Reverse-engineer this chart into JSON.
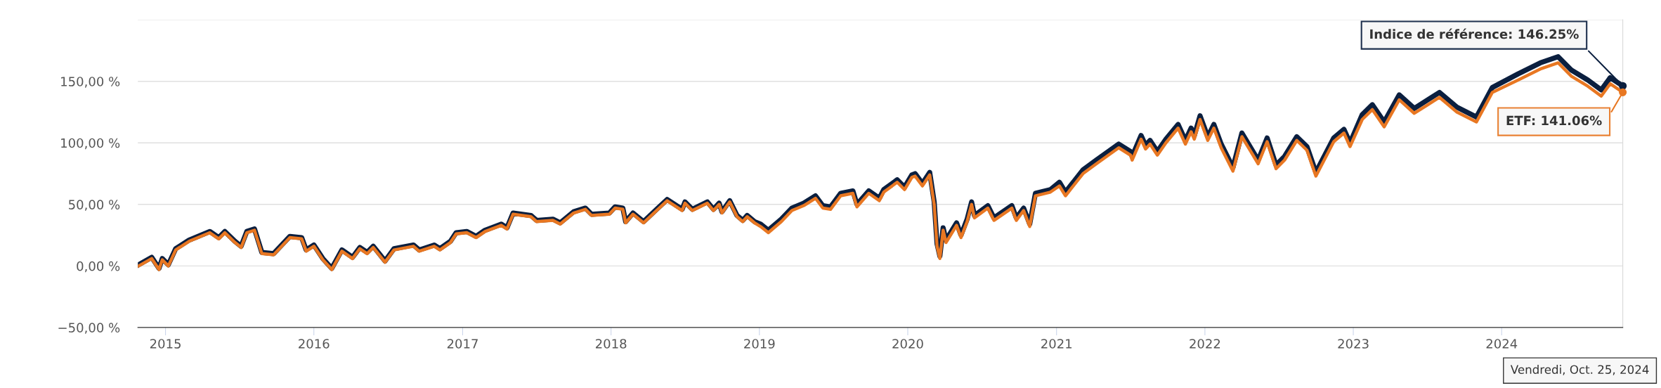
{
  "chart_data": {
    "type": "line",
    "x": [
      "2014-10-27",
      "2014-11-28",
      "2014-12-16",
      "2014-12-24",
      "2015-01-08",
      "2015-01-26",
      "2015-02-28",
      "2015-04-20",
      "2015-05-12",
      "2015-05-27",
      "2015-06-21",
      "2015-07-06",
      "2015-07-20",
      "2015-08-08",
      "2015-08-26",
      "2015-09-24",
      "2015-11-03",
      "2015-12-02",
      "2015-12-13",
      "2016-01-01",
      "2016-01-23",
      "2016-02-14",
      "2016-03-10",
      "2016-04-05",
      "2016-04-23",
      "2016-05-11",
      "2016-05-26",
      "2016-06-24",
      "2016-07-16",
      "2016-09-02",
      "2016-09-16",
      "2016-10-23",
      "2016-11-06",
      "2016-12-02",
      "2016-12-16",
      "2017-01-11",
      "2017-02-03",
      "2017-02-25",
      "2017-04-06",
      "2017-04-20",
      "2017-05-05",
      "2017-06-18",
      "2017-07-02",
      "2017-08-11",
      "2017-08-29",
      "2017-10-01",
      "2017-10-30",
      "2017-11-14",
      "2017-12-28",
      "2018-01-11",
      "2018-01-30",
      "2018-02-06",
      "2018-02-24",
      "2018-03-22",
      "2018-04-23",
      "2018-05-19",
      "2018-06-25",
      "2018-07-02",
      "2018-07-20",
      "2018-08-26",
      "2018-09-10",
      "2018-09-24",
      "2018-10-01",
      "2018-10-20",
      "2018-11-07",
      "2018-11-21",
      "2018-12-02",
      "2018-12-20",
      "2019-01-04",
      "2019-01-23",
      "2019-02-24",
      "2019-03-22",
      "2019-04-20",
      "2019-05-19",
      "2019-06-06",
      "2019-06-25",
      "2019-07-20",
      "2019-08-19",
      "2019-08-29",
      "2019-09-27",
      "2019-10-23",
      "2019-11-03",
      "2019-12-06",
      "2019-12-24",
      "2020-01-11",
      "2020-01-19",
      "2020-02-06",
      "2020-02-24",
      "2020-03-06",
      "2020-03-13",
      "2020-03-20",
      "2020-03-28",
      "2020-04-04",
      "2020-04-30",
      "2020-05-11",
      "2020-05-26",
      "2020-06-06",
      "2020-06-13",
      "2020-07-16",
      "2020-07-31",
      "2020-09-13",
      "2020-09-24",
      "2020-10-12",
      "2020-10-27",
      "2020-11-10",
      "2020-12-17",
      "2021-01-08",
      "2021-01-23",
      "2021-03-07",
      "2021-04-09",
      "2021-06-03",
      "2021-07-02",
      "2021-07-06",
      "2021-07-28",
      "2021-08-08",
      "2021-08-19",
      "2021-09-06",
      "2021-09-27",
      "2021-10-27",
      "2021-11-14",
      "2021-11-28",
      "2021-12-06",
      "2021-12-20",
      "2022-01-08",
      "2022-01-23",
      "2022-02-10",
      "2022-03-11",
      "2022-04-02",
      "2022-05-12",
      "2022-06-03",
      "2022-06-25",
      "2022-07-16",
      "2022-08-15",
      "2022-09-09",
      "2022-10-01",
      "2022-11-14",
      "2022-12-09",
      "2022-12-24",
      "2023-01-23",
      "2023-02-17",
      "2023-03-18",
      "2023-04-24",
      "2023-05-31",
      "2023-08-01",
      "2023-09-13",
      "2023-10-31",
      "2023-12-09",
      "2024-02-10",
      "2024-04-05",
      "2024-05-19",
      "2024-06-21",
      "2024-07-31",
      "2024-09-02",
      "2024-09-24",
      "2024-10-25"
    ],
    "series": [
      {
        "color": "#0b1f3f",
        "values": [
          1,
          7,
          -2,
          6,
          1,
          14,
          21,
          28,
          23,
          28,
          20,
          16,
          28,
          30,
          11,
          10,
          24,
          23,
          13,
          17,
          6,
          -2,
          13,
          7,
          15,
          11,
          16,
          4,
          14,
          17,
          13,
          17,
          14,
          20,
          27,
          28,
          24,
          29,
          34,
          31,
          43,
          41,
          37,
          38,
          35,
          44,
          47,
          42,
          43,
          48,
          47,
          36,
          43,
          36,
          46,
          54,
          46,
          52,
          46,
          52,
          46,
          51,
          44,
          53,
          41,
          37,
          41,
          36,
          34,
          29,
          38,
          47,
          51,
          57,
          49,
          48,
          59,
          61,
          50,
          61,
          55,
          62,
          70,
          64,
          74,
          75,
          67,
          76,
          52,
          18,
          8,
          31,
          21,
          35,
          25,
          38,
          52,
          41,
          49,
          39,
          49,
          39,
          47,
          34,
          59,
          62,
          68,
          60,
          78,
          86,
          99,
          93,
          89,
          106,
          98,
          102,
          93,
          103,
          115,
          102,
          112,
          106,
          122,
          105,
          115,
          99,
          80,
          108,
          86,
          104,
          82,
          89,
          105,
          97,
          76,
          104,
          111,
          100,
          123,
          131,
          117,
          139,
          128,
          141,
          129,
          121,
          145,
          156,
          165,
          170,
          159,
          151,
          143,
          153,
          146.25
        ]
      },
      {
        "color": "#e87722",
        "values": [
          0,
          6,
          -3,
          5,
          0,
          13,
          20,
          27,
          22,
          27,
          19,
          15,
          27,
          29,
          10,
          9,
          23,
          22,
          12,
          16,
          5,
          -3,
          12,
          6,
          14,
          10,
          15,
          3,
          13,
          16,
          12,
          16,
          13,
          19,
          26,
          27,
          23,
          28,
          33,
          30,
          42,
          40,
          36,
          37,
          34,
          43,
          46,
          41,
          42,
          47,
          46,
          35,
          42,
          35,
          45,
          53,
          45,
          51,
          45,
          51,
          45,
          50,
          43,
          52,
          40,
          36,
          40,
          35,
          32,
          27,
          36,
          45,
          49,
          55,
          47,
          46,
          57,
          59,
          48,
          59,
          53,
          60,
          68,
          62,
          72,
          73,
          65,
          74,
          50,
          16,
          6,
          29,
          19,
          33,
          23,
          36,
          50,
          39,
          47,
          37,
          47,
          37,
          45,
          32,
          57,
          60,
          65,
          57,
          75,
          83,
          96,
          90,
          86,
          103,
          95,
          99,
          90,
          100,
          112,
          99,
          109,
          103,
          119,
          102,
          112,
          96,
          77,
          105,
          83,
          101,
          79,
          86,
          102,
          94,
          73,
          101,
          108,
          97,
          119,
          127,
          113,
          135,
          124,
          137,
          125,
          117,
          141,
          151,
          160,
          165,
          154,
          146,
          138,
          148,
          141.06
        ]
      }
    ],
    "xlim": [
      "2014-10-25",
      "2024-10-25"
    ],
    "xticks": [
      {
        "value": "2015-01-01",
        "label": "2015"
      },
      {
        "value": "2016-01-01",
        "label": "2016"
      },
      {
        "value": "2017-01-01",
        "label": "2017"
      },
      {
        "value": "2018-01-01",
        "label": "2018"
      },
      {
        "value": "2019-01-01",
        "label": "2019"
      },
      {
        "value": "2020-01-01",
        "label": "2020"
      },
      {
        "value": "2021-01-01",
        "label": "2021"
      },
      {
        "value": "2022-01-01",
        "label": "2022"
      },
      {
        "value": "2023-01-01",
        "label": "2023"
      },
      {
        "value": "2024-01-01",
        "label": "2024"
      }
    ],
    "ylim": [
      -50,
      200
    ],
    "yticks": [
      {
        "value": -50,
        "label": "−50,00 %"
      },
      {
        "value": 0,
        "label": "0,00 %"
      },
      {
        "value": 50,
        "label": "50,00 %"
      },
      {
        "value": 100,
        "label": "100,00 %"
      },
      {
        "value": 150,
        "label": "150,00 %"
      },
      {
        "value": 200,
        "label": null
      }
    ],
    "grid": "y",
    "annotations": [
      {
        "text": "Indice de référence: 146.25%",
        "x": "2024-10-25",
        "y": 146.25
      },
      {
        "text": "ETF: 141.06%",
        "x": "2024-10-25",
        "y": 141.06
      },
      "Vendredi, Oct. 25, 2024"
    ]
  }
}
